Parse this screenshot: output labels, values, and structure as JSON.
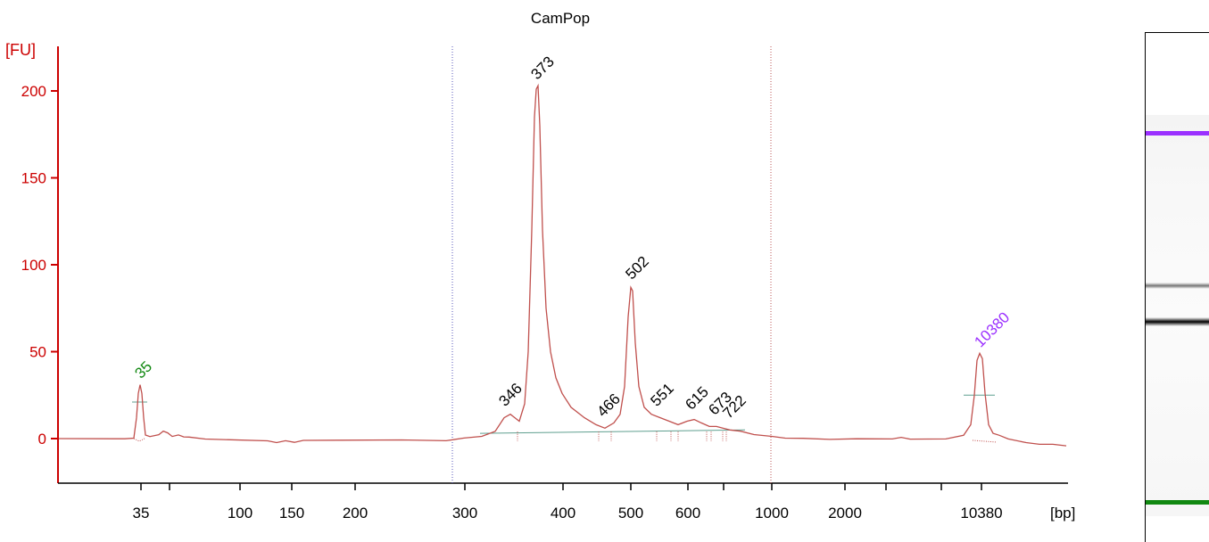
{
  "chart_data": {
    "type": "line",
    "title": "CamPop",
    "ylabel": "[FU]",
    "xlabel": "[bp]",
    "ylim": [
      -25,
      225
    ],
    "yticks": [
      0,
      50,
      100,
      150,
      200
    ],
    "xticks": [
      "35",
      "",
      "100",
      "150",
      "200",
      "300",
      "400",
      "500",
      "600",
      "",
      "1000",
      "2000",
      "",
      "",
      "10380"
    ],
    "grid": false,
    "colors": {
      "trace": "#c0504d",
      "axis": "#cc0000",
      "baseline": "#5f9f8f",
      "lower_marker": "#118811",
      "upper_marker": "#9b30ff",
      "peak_label": "#000000"
    },
    "peaks": [
      {
        "label": "35",
        "fu": 31,
        "color": "#118811"
      },
      {
        "label": "346",
        "fu": 14,
        "color": "#000000"
      },
      {
        "label": "373",
        "fu": 203,
        "color": "#000000"
      },
      {
        "label": "466",
        "fu": 4,
        "color": "#000000"
      },
      {
        "label": "502",
        "fu": 88,
        "color": "#000000"
      },
      {
        "label": "551",
        "fu": 12,
        "color": "#000000"
      },
      {
        "label": "615",
        "fu": 10,
        "color": "#000000"
      },
      {
        "label": "673",
        "fu": 7,
        "color": "#000000"
      },
      {
        "label": "722",
        "fu": 5,
        "color": "#000000"
      },
      {
        "label": "10380",
        "fu": 49,
        "color": "#9b30ff"
      }
    ],
    "region_markers": [
      "300",
      "1000"
    ],
    "gel": {
      "bands": [
        {
          "position": 0.045,
          "color": "#9b30ff",
          "intensity": 1.0
        },
        {
          "position": 0.425,
          "color": "#777777",
          "intensity": 0.5
        },
        {
          "position": 0.515,
          "color": "#000000",
          "intensity": 1.0
        },
        {
          "position": 0.965,
          "color": "#118811",
          "intensity": 1.0
        }
      ]
    }
  }
}
